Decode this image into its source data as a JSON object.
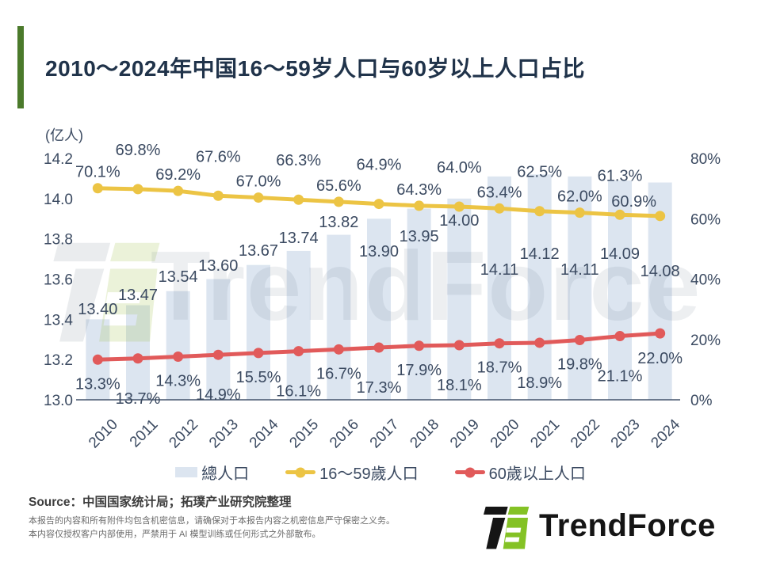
{
  "title": "2010～2024年中国16～59岁人口与60岁以上人口占比",
  "chart_data": {
    "type": "combo-bar-line",
    "categories": [
      "2010",
      "2011",
      "2012",
      "2013",
      "2014",
      "2015",
      "2016",
      "2017",
      "2018",
      "2019",
      "2020",
      "2021",
      "2022",
      "2023",
      "2024"
    ],
    "series": [
      {
        "name": "總人口",
        "type": "bar",
        "axis": "left",
        "color": "#dce5f0",
        "values": [
          13.4,
          13.47,
          13.54,
          13.6,
          13.67,
          13.74,
          13.82,
          13.9,
          13.95,
          14.0,
          14.11,
          14.12,
          14.11,
          14.09,
          14.08
        ]
      },
      {
        "name": "16～59歲人口",
        "type": "line",
        "axis": "right",
        "color": "#ecc444",
        "values": [
          70.1,
          69.8,
          69.2,
          67.6,
          67.0,
          66.3,
          65.6,
          64.9,
          64.3,
          64.0,
          63.4,
          62.5,
          62.0,
          61.3,
          60.9
        ]
      },
      {
        "name": "60歲以上人口",
        "type": "line",
        "axis": "right",
        "color": "#e15a5a",
        "values": [
          13.3,
          13.7,
          14.3,
          14.9,
          15.5,
          16.1,
          16.7,
          17.3,
          17.9,
          18.1,
          18.7,
          18.9,
          19.8,
          21.1,
          22.0
        ]
      }
    ],
    "left_axis": {
      "label": "(亿人)",
      "min": 13.0,
      "max": 14.2,
      "tick_step": 0.2,
      "ticks": [
        "14.2",
        "14.0",
        "13.8",
        "13.6",
        "13.4",
        "13.2",
        "13.0"
      ]
    },
    "right_axis": {
      "min": 0,
      "max": 80,
      "tick_step": 20,
      "ticks": [
        "80%",
        "60%",
        "40%",
        "20%",
        "0%"
      ]
    },
    "grid": false,
    "legend_position": "bottom"
  },
  "watermark": {
    "text": "TrendForce"
  },
  "footer": {
    "source": "Source：中国国家统计局；拓璞产业研究院整理",
    "disclaimer_line1": "本报告的内容和所有附件均包含机密信息，请确保对于本报告内容之机密信息严守保密之义务。",
    "disclaimer_line2": "本内容仅授权客户内部使用，严禁用于 AI 模型训练或任何形式之外部散布。",
    "logo_text": "TrendForce"
  },
  "colors": {
    "accent_green": "#4b7a2b",
    "logo_green": "#84c225",
    "logo_black": "#151515",
    "text_navy": "#3b4a61",
    "title_navy": "#20334a",
    "bar_fill": "#dce5f0",
    "line_yellow": "#ecc444",
    "line_red": "#e15a5a"
  }
}
